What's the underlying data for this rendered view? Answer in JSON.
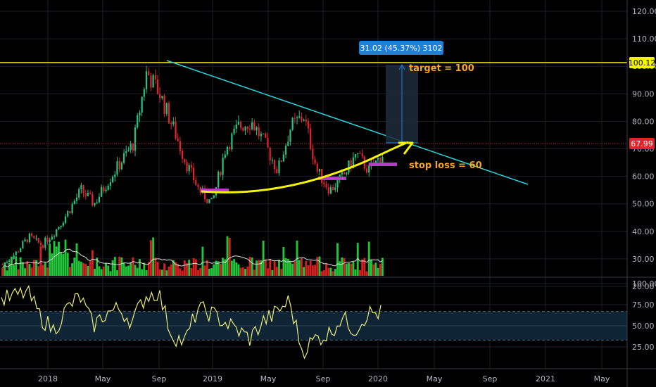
{
  "colors": {
    "background": "#000000",
    "grid": "#1c1f26",
    "up_candle": "#26c281",
    "down_candle": "#e0242b",
    "up_volume": "#22c53a",
    "down_volume": "#d32121",
    "trendline": "#2ad4dc",
    "target_line": "#f5f500",
    "price_line": "#e0242b",
    "annotation": "#f5f500",
    "support_marker": "#b43cc8",
    "note_text": "#f5a623",
    "projection_fill": "#1f2b3c",
    "projection_badge": "#1e7fd6",
    "rsi_line": "#ecec78",
    "rsi_band": "#0f2536",
    "volume_ma": "#dddddd"
  },
  "price_axis": {
    "ticks": [
      "120.00",
      "110.00",
      "100.00",
      "90.00",
      "80.00",
      "70.00",
      "60.00",
      "50.00",
      "40.00",
      "30.00",
      "20.00"
    ],
    "current_price_label": "67.99",
    "target_price_label": "100.12"
  },
  "rsi_axis": {
    "ticks": [
      "100.00",
      "75.00",
      "50.00",
      "25.00"
    ]
  },
  "time_axis": {
    "labels": [
      "2018",
      "May",
      "Sep",
      "2019",
      "May",
      "Sep",
      "2020",
      "May",
      "Sep",
      "2021",
      "May"
    ]
  },
  "annotations": {
    "projection_label": "31.02 (45.37%) 3102",
    "target_note": "target = 100",
    "stop_note": "stop loss = 60"
  },
  "chart_data": [
    {
      "type": "candlestick",
      "title": "",
      "x_start": "2017-10",
      "x_end": "2020-01",
      "ylim": [
        15,
        125
      ],
      "approx_closes": [
        28,
        32,
        38,
        35,
        40,
        47,
        55,
        50,
        58,
        65,
        72,
        98,
        90,
        78,
        65,
        55,
        50,
        70,
        78,
        80,
        72,
        62,
        78,
        82,
        62,
        55,
        60,
        68,
        62,
        68
      ],
      "horizontal_lines": [
        100.12,
        67.99
      ],
      "trendline_from_to": [
        [
          "2018-09",
          100
        ],
        [
          "2020-12",
          52
        ]
      ],
      "support_levels": [
        49,
        55,
        60
      ]
    },
    {
      "type": "bar",
      "title": "",
      "ylabel": "",
      "up_heights_rel": [
        0.3,
        0.5,
        0.9,
        0.4,
        0.5,
        0.6,
        0.4,
        0.3,
        0.5,
        0.4
      ],
      "note": "volume histogram with moving average line"
    },
    {
      "type": "line",
      "title": "",
      "ylim": [
        0,
        100
      ],
      "band": [
        33,
        67
      ],
      "approx_values": [
        80,
        85,
        90,
        60,
        45,
        70,
        85,
        50,
        65,
        70,
        55,
        85,
        90,
        40,
        30,
        70,
        65,
        55,
        45,
        35,
        55,
        65,
        80,
        20,
        35,
        40,
        60,
        45,
        65,
        65
      ]
    }
  ]
}
